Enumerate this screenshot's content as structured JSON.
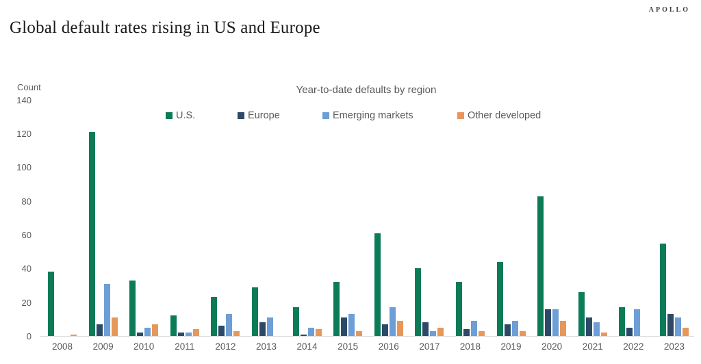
{
  "header": {
    "title": "Global default rates rising in US and Europe",
    "brand": "APOLLO"
  },
  "chart_data": {
    "type": "bar",
    "title": "Year-to-date defaults by region",
    "ylabel": "Count",
    "xlabel": "",
    "ylim": [
      0,
      140
    ],
    "yticks": [
      140,
      120,
      100,
      80,
      60,
      40,
      20,
      0
    ],
    "grid": false,
    "legend_position": "top",
    "categories": [
      "2008",
      "2009",
      "2010",
      "2011",
      "2012",
      "2013",
      "2014",
      "2015",
      "2016",
      "2017",
      "2018",
      "2019",
      "2020",
      "2021",
      "2022",
      "2023"
    ],
    "series": [
      {
        "name": "U.S.",
        "color": "#0b7b58",
        "values": [
          38,
          121,
          33,
          12,
          23,
          29,
          17,
          32,
          61,
          40,
          32,
          44,
          83,
          26,
          17,
          55
        ]
      },
      {
        "name": "Europe",
        "color": "#2c4a68",
        "values": [
          0,
          7,
          2,
          2,
          6,
          8,
          1,
          11,
          7,
          8,
          4,
          7,
          16,
          11,
          5,
          13
        ]
      },
      {
        "name": "Emerging markets",
        "color": "#6d9ed6",
        "values": [
          0,
          31,
          5,
          2,
          13,
          11,
          5,
          13,
          17,
          3,
          9,
          9,
          16,
          8,
          16,
          11
        ]
      },
      {
        "name": "Other developed",
        "color": "#e8975a",
        "values": [
          1,
          11,
          7,
          4,
          3,
          0,
          4,
          3,
          9,
          5,
          3,
          3,
          9,
          2,
          0,
          5
        ]
      }
    ]
  }
}
